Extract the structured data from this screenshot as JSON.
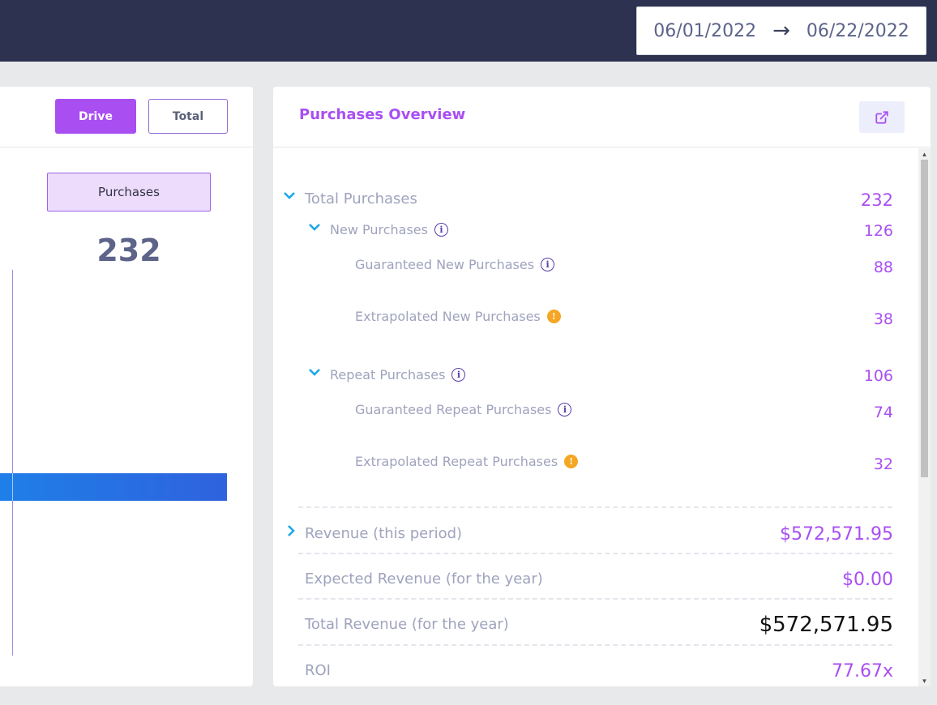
{
  "header": {
    "date_start": "06/01/2022",
    "date_arrow": "→",
    "date_end": "06/22/2022"
  },
  "left_panel": {
    "drive_label": "Drive",
    "total_label": "Total",
    "metric_label": "Purchases",
    "metric_value": "232"
  },
  "overview": {
    "title": "Purchases Overview",
    "rows": {
      "total_purchases": {
        "label": "Total Purchases",
        "value": "232"
      },
      "new_purchases": {
        "label": "New Purchases",
        "value": "126"
      },
      "guaranteed_new": {
        "label": "Guaranteed New Purchases",
        "value": "88"
      },
      "extrapolated_new": {
        "label": "Extrapolated New Purchases",
        "value": "38"
      },
      "repeat_purchases": {
        "label": "Repeat Purchases",
        "value": "106"
      },
      "guaranteed_repeat": {
        "label": "Guaranteed Repeat Purchases",
        "value": "74"
      },
      "extrapolated_repeat": {
        "label": "Extrapolated Repeat Purchases",
        "value": "32"
      },
      "revenue_period": {
        "label": "Revenue (this period)",
        "value": "$572,571.95"
      },
      "expected_revenue": {
        "label": "Expected Revenue (for the year)",
        "value": "$0.00"
      },
      "total_revenue": {
        "label": "Total Revenue (for the year)",
        "value": "$572,571.95"
      },
      "roi": {
        "label": "ROI",
        "value": "77.67x"
      }
    }
  },
  "colors": {
    "accent": "#a94ff2",
    "navy": "#2d3250",
    "chevron": "#1ea7e8",
    "warning": "#f5a623"
  },
  "icons": {
    "external_link": "external-link-icon",
    "info": "info-icon",
    "warning": "warning-icon",
    "expand": "chevron-down-icon",
    "collapsed": "chevron-right-icon"
  }
}
